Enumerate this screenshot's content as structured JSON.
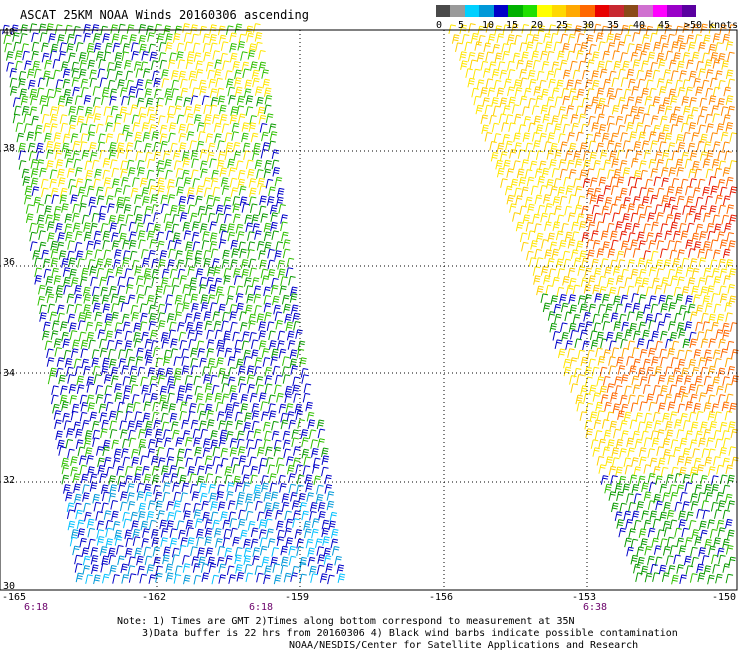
{
  "title": "ASCAT 25KM NOAA Winds 20160306 ascending",
  "colorbar": {
    "labels": [
      "0",
      "5",
      "10",
      "15",
      "20",
      "25",
      "30",
      "35",
      "40",
      "45",
      ">50 knots"
    ],
    "colors": [
      "#4a4a4a",
      "#9a9a9a",
      "#00d0ff",
      "#0098d8",
      "#0000c8",
      "#00b000",
      "#20e000",
      "#ffff00",
      "#ffd800",
      "#ffa800",
      "#ff6800",
      "#e80000",
      "#c82830",
      "#8a4a18",
      "#d070d0",
      "#ff00ff",
      "#9a00c8",
      "#5a00a0"
    ]
  },
  "axes": {
    "lat_labels": [
      "40",
      "38",
      "36",
      "34",
      "32",
      "30"
    ],
    "lon_labels": [
      "-165",
      "-162",
      "-159",
      "-156",
      "-153",
      "-150"
    ]
  },
  "times": [
    "6:18",
    "6:18",
    "6:38"
  ],
  "notes": {
    "line1": "Note: 1) Times are GMT 2)Times along bottom correspond to measurement at 35N",
    "line2": "3)Data buffer is 22 hrs from 20160306 4) Black wind barbs indicate possible contamination",
    "line3": "NOAA/NESDIS/Center for Satellite Applications and Research"
  }
}
